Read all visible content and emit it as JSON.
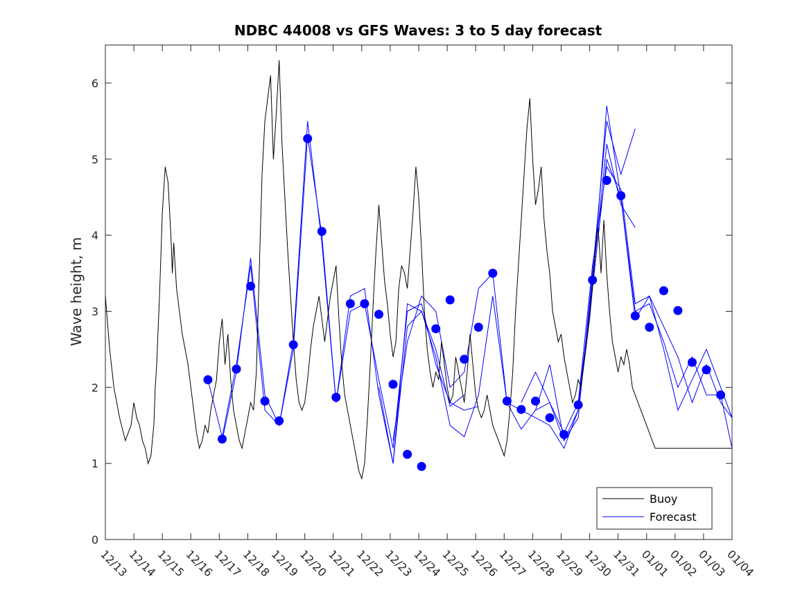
{
  "chart_data": {
    "type": "line",
    "title": "NDBC 44008 vs GFS Waves: 3 to 5 day forecast",
    "xlabel": "",
    "ylabel": "Wave height, m",
    "xlim": [
      0,
      22
    ],
    "ylim": [
      0,
      6.5
    ],
    "x_tick_labels": [
      "12/13",
      "12/14",
      "12/15",
      "12/16",
      "12/17",
      "12/18",
      "12/19",
      "12/20",
      "12/21",
      "12/22",
      "12/23",
      "12/24",
      "12/25",
      "12/26",
      "12/27",
      "12/28",
      "12/29",
      "12/30",
      "12/31",
      "01/01",
      "01/02",
      "01/03",
      "01/04"
    ],
    "y_ticks": [
      0,
      1,
      2,
      3,
      4,
      5,
      6
    ],
    "legend": {
      "placement": "bottom-right",
      "entries": [
        {
          "name": "Buoy",
          "color": "#000000"
        },
        {
          "name": "Forecast",
          "color": "#0000ff"
        }
      ]
    },
    "colors": {
      "buoy": "#000000",
      "forecast": "#0000ff"
    },
    "series": [
      {
        "name": "Buoy",
        "color": "#000000",
        "x": [
          0,
          0.15,
          0.3,
          0.5,
          0.7,
          0.9,
          1.0,
          1.1,
          1.2,
          1.3,
          1.4,
          1.5,
          1.6,
          1.7,
          1.75,
          1.8,
          1.9,
          2.0,
          2.1,
          2.2,
          2.3,
          2.35,
          2.4,
          2.5,
          2.6,
          2.7,
          2.8,
          2.9,
          3.0,
          3.1,
          3.2,
          3.3,
          3.4,
          3.5,
          3.6,
          3.7,
          3.8,
          3.9,
          4.0,
          4.1,
          4.2,
          4.3,
          4.4,
          4.5,
          4.6,
          4.7,
          4.8,
          4.9,
          5.0,
          5.1,
          5.2,
          5.3,
          5.4,
          5.5,
          5.6,
          5.7,
          5.8,
          5.9,
          6.0,
          6.1,
          6.2,
          6.3,
          6.4,
          6.5,
          6.6,
          6.7,
          6.8,
          6.9,
          7.0,
          7.1,
          7.2,
          7.3,
          7.4,
          7.5,
          7.6,
          7.7,
          7.8,
          7.9,
          8.0,
          8.1,
          8.2,
          8.3,
          8.4,
          8.5,
          8.6,
          8.7,
          8.8,
          8.9,
          9.0,
          9.1,
          9.2,
          9.3,
          9.4,
          9.5,
          9.6,
          9.7,
          9.8,
          9.9,
          10.0,
          10.1,
          10.2,
          10.3,
          10.4,
          10.5,
          10.6,
          10.7,
          10.8,
          10.9,
          11.0,
          11.1,
          11.2,
          11.3,
          11.4,
          11.5,
          11.6,
          11.7,
          11.8,
          11.9,
          12.0,
          12.1,
          12.2,
          12.3,
          12.4,
          12.5,
          12.6,
          12.7,
          12.8,
          12.9,
          13.0,
          13.1,
          13.2,
          13.3,
          13.4,
          13.5,
          13.6,
          13.7,
          13.8,
          13.9,
          14.0,
          14.1,
          14.2,
          14.3,
          14.4,
          14.5,
          14.6,
          14.7,
          14.8,
          14.9,
          15.0,
          15.1,
          15.2,
          15.3,
          15.4,
          15.5,
          15.6,
          15.7,
          15.8,
          15.9,
          16.0,
          16.1,
          16.2,
          16.3,
          16.4,
          16.5,
          16.6,
          16.7,
          16.8,
          16.9,
          17.0,
          17.1,
          17.2,
          17.3,
          17.4,
          17.5,
          17.6,
          17.7,
          17.8,
          17.9,
          18.0,
          18.1,
          18.2,
          18.3,
          18.4,
          18.5,
          18.6,
          18.7,
          18.8,
          18.9,
          19.0,
          19.1,
          19.2,
          19.3,
          19.4,
          19.5,
          19.6,
          19.7,
          19.8,
          19.9,
          20.0,
          20.1,
          20.2,
          20.3,
          20.4,
          20.5,
          20.6,
          20.7,
          20.8,
          20.9,
          21.0,
          21.1,
          21.2,
          21.3,
          21.4,
          21.5,
          21.6,
          21.7,
          21.8,
          21.9,
          22.0
        ],
        "y": [
          3.2,
          2.5,
          2.0,
          1.6,
          1.3,
          1.5,
          1.8,
          1.6,
          1.5,
          1.3,
          1.2,
          1.0,
          1.1,
          1.5,
          2.0,
          2.3,
          3.2,
          4.3,
          4.9,
          4.7,
          4.0,
          3.5,
          3.9,
          3.3,
          3.0,
          2.7,
          2.5,
          2.3,
          2.0,
          1.7,
          1.4,
          1.2,
          1.3,
          1.5,
          1.4,
          1.7,
          1.9,
          2.1,
          2.6,
          2.9,
          2.3,
          2.7,
          2.1,
          1.7,
          1.5,
          1.3,
          1.2,
          1.4,
          1.6,
          1.8,
          1.7,
          2.2,
          3.5,
          4.8,
          5.5,
          5.8,
          6.1,
          5.0,
          5.6,
          6.3,
          5.2,
          4.5,
          3.8,
          3.2,
          2.6,
          2.1,
          1.8,
          1.7,
          1.8,
          2.1,
          2.5,
          2.8,
          3.0,
          3.2,
          2.9,
          2.6,
          2.9,
          3.2,
          3.4,
          3.6,
          2.9,
          2.3,
          1.9,
          1.7,
          1.5,
          1.3,
          1.1,
          0.9,
          0.8,
          1.0,
          1.6,
          2.3,
          3.1,
          3.8,
          4.4,
          3.9,
          3.4,
          3.1,
          2.7,
          2.4,
          2.6,
          3.3,
          3.6,
          3.5,
          3.3,
          3.8,
          4.3,
          4.9,
          4.5,
          3.8,
          3.0,
          2.5,
          2.2,
          2.0,
          2.2,
          2.1,
          2.6,
          2.3,
          2.0,
          1.8,
          1.9,
          2.4,
          2.2,
          2.0,
          1.8,
          2.2,
          2.7,
          2.3,
          1.9,
          1.7,
          1.6,
          1.7,
          1.9,
          1.7,
          1.5,
          1.4,
          1.3,
          1.2,
          1.1,
          1.3,
          1.7,
          2.2,
          3.0,
          3.6,
          4.2,
          4.8,
          5.4,
          5.8,
          5.0,
          4.4,
          4.6,
          4.9,
          4.2,
          3.8,
          3.5,
          3.0,
          2.8,
          2.6,
          2.7,
          2.4,
          2.2,
          2.0,
          1.8,
          1.9,
          2.1,
          2.0,
          2.3,
          2.6,
          2.9,
          3.3,
          3.8,
          4.1,
          3.5,
          4.2,
          3.5,
          3.0,
          2.6,
          2.4,
          2.2,
          2.4,
          2.3,
          2.5,
          2.3,
          2.0,
          1.9,
          1.8,
          1.7,
          1.6,
          1.5,
          1.4,
          1.3,
          1.2,
          1.2,
          1.2,
          1.2,
          1.2,
          1.2,
          1.2,
          1.2,
          1.2,
          1.2,
          1.2,
          1.2,
          1.2,
          1.2,
          1.2,
          1.2,
          1.2,
          1.2,
          1.2,
          1.2,
          1.2,
          1.2,
          1.2,
          1.2,
          1.2,
          1.2,
          1.2,
          1.2
        ]
      }
    ],
    "forecast_runs": [
      {
        "x": [
          3.6,
          4.1,
          4.6,
          5.1,
          5.6,
          6.1,
          6.6,
          7.1,
          7.6,
          8.1,
          8.6,
          9.1,
          9.6,
          10.1,
          10.6,
          11.1,
          11.6,
          12.1,
          12.6
        ],
        "y": [
          2.1,
          1.35,
          2.3,
          3.6,
          1.7,
          1.5,
          2.6,
          5.5,
          3.9,
          1.8,
          3.2,
          3.3,
          1.9,
          1.0,
          2.8,
          3.0,
          2.5,
          1.75,
          1.9
        ]
      },
      {
        "x": [
          4.1,
          4.6,
          5.1,
          5.6,
          6.1,
          6.6,
          7.1,
          7.6,
          8.1,
          8.6,
          9.1,
          9.6,
          10.1,
          10.6,
          11.1,
          11.6,
          12.1,
          12.6,
          13.1
        ],
        "y": [
          1.3,
          2.2,
          3.7,
          1.9,
          1.5,
          2.5,
          5.3,
          4.0,
          1.8,
          3.0,
          3.1,
          2.1,
          1.2,
          3.0,
          3.1,
          2.3,
          1.8,
          1.7,
          1.75
        ]
      },
      {
        "x": [
          9.6,
          10.1,
          10.6,
          11.1,
          11.6,
          12.1,
          12.6,
          13.1,
          13.6,
          14.1,
          14.6,
          15.1,
          15.6,
          16.1,
          16.6,
          17.1,
          17.6,
          18.1,
          18.6
        ],
        "y": [
          2.0,
          1.0,
          3.1,
          3.0,
          2.4,
          1.5,
          1.35,
          1.9,
          3.2,
          1.8,
          1.7,
          1.6,
          1.5,
          1.2,
          1.7,
          3.4,
          5.2,
          4.4,
          4.1
        ]
      },
      {
        "x": [
          10.1,
          10.6,
          11.1,
          11.6,
          12.1,
          12.6,
          13.1,
          13.6,
          14.1,
          14.6,
          15.1,
          15.6,
          16.1,
          16.6,
          17.1,
          17.6,
          18.1,
          18.6
        ],
        "y": [
          1.3,
          2.6,
          3.2,
          3.0,
          2.0,
          2.2,
          3.3,
          3.5,
          1.8,
          1.45,
          1.7,
          2.3,
          1.3,
          1.6,
          3.5,
          5.5,
          4.8,
          5.4
        ]
      },
      {
        "x": [
          14.6,
          15.1,
          15.6,
          16.1,
          16.6,
          17.1,
          17.6,
          18.1,
          18.6,
          19.1,
          19.6,
          20.1,
          20.6,
          21.1,
          21.6,
          22.0
        ],
        "y": [
          1.8,
          2.2,
          1.8,
          1.4,
          1.8,
          3.6,
          4.9,
          4.6,
          3.1,
          3.2,
          2.8,
          2.4,
          1.8,
          2.3,
          1.8,
          1.6
        ]
      },
      {
        "x": [
          15.1,
          15.6,
          16.1,
          16.6,
          17.1,
          17.6,
          18.1,
          18.6,
          19.1,
          19.6,
          20.1,
          20.6,
          21.1,
          21.6,
          22.0
        ],
        "y": [
          1.7,
          1.8,
          1.3,
          1.7,
          3.3,
          5.0,
          4.5,
          3.0,
          3.1,
          2.6,
          2.0,
          2.4,
          1.9,
          1.9,
          1.2
        ]
      },
      {
        "x": [
          16.6,
          17.1,
          17.6,
          18.1,
          18.6,
          19.1,
          19.6,
          20.1,
          20.6,
          21.1,
          21.6,
          22.0
        ],
        "y": [
          1.8,
          3.3,
          5.7,
          4.5,
          2.9,
          3.2,
          2.5,
          1.7,
          2.1,
          2.5,
          2.0,
          1.6
        ]
      }
    ],
    "forecast_markers": {
      "x": [
        3.6,
        4.1,
        4.6,
        5.1,
        5.6,
        6.1,
        6.6,
        7.1,
        7.6,
        8.1,
        8.6,
        9.1,
        9.6,
        10.1,
        10.6,
        11.1,
        11.6,
        12.1,
        12.6,
        13.1,
        13.6,
        14.1,
        14.6,
        15.1,
        15.6,
        16.1,
        16.6,
        17.1,
        17.6,
        18.1,
        18.6,
        19.1,
        19.6,
        20.1,
        20.6,
        21.1,
        21.6
      ],
      "y": [
        2.1,
        1.32,
        2.24,
        3.33,
        1.82,
        1.56,
        2.56,
        5.27,
        4.05,
        1.87,
        3.1,
        3.1,
        2.96,
        2.04,
        1.12,
        0.96,
        2.77,
        3.15,
        2.37,
        2.79,
        3.5,
        1.82,
        1.71,
        1.82,
        1.6,
        1.38,
        1.77,
        3.41,
        4.72,
        4.52,
        2.94,
        2.79,
        3.27,
        3.01,
        2.33,
        2.23,
        1.9
      ]
    }
  }
}
